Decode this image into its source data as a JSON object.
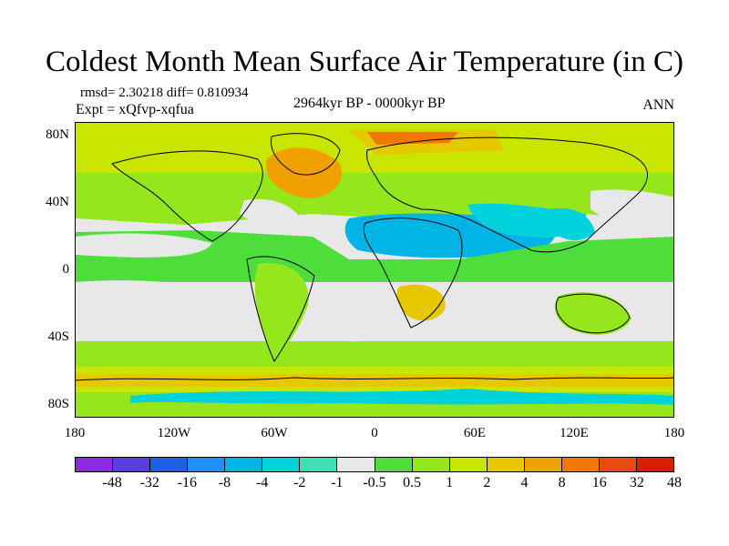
{
  "title": "Coldest Month Mean Surface Air Temperature (in C)",
  "stats": "rmsd= 2.30218 diff= 0.810934",
  "experiment": "Expt = xQfvp-xqfua",
  "period": "2964kyr BP - 0000kyr BP",
  "season": "ANN",
  "map": {
    "lat_ticks": [
      "80N",
      "40N",
      "0",
      "40S",
      "80S"
    ],
    "lon_ticks": [
      "180",
      "120W",
      "60W",
      "0",
      "60E",
      "120E",
      "180"
    ]
  },
  "legend": {
    "colors": [
      "#8a2be2",
      "#5a3fe0",
      "#1f5fe6",
      "#1e90ff",
      "#00b4e6",
      "#00d2dc",
      "#3ce0b4",
      "#e8e8e8",
      "#4ede3c",
      "#96e61e",
      "#c8e600",
      "#e6c800",
      "#f0a000",
      "#f07800",
      "#e84a10",
      "#d82000"
    ],
    "labels": [
      "-48",
      "-32",
      "-16",
      "-8",
      "-4",
      "-2",
      "-1",
      "-0.5",
      "0.5",
      "1",
      "2",
      "4",
      "8",
      "16",
      "32",
      "48"
    ]
  }
}
